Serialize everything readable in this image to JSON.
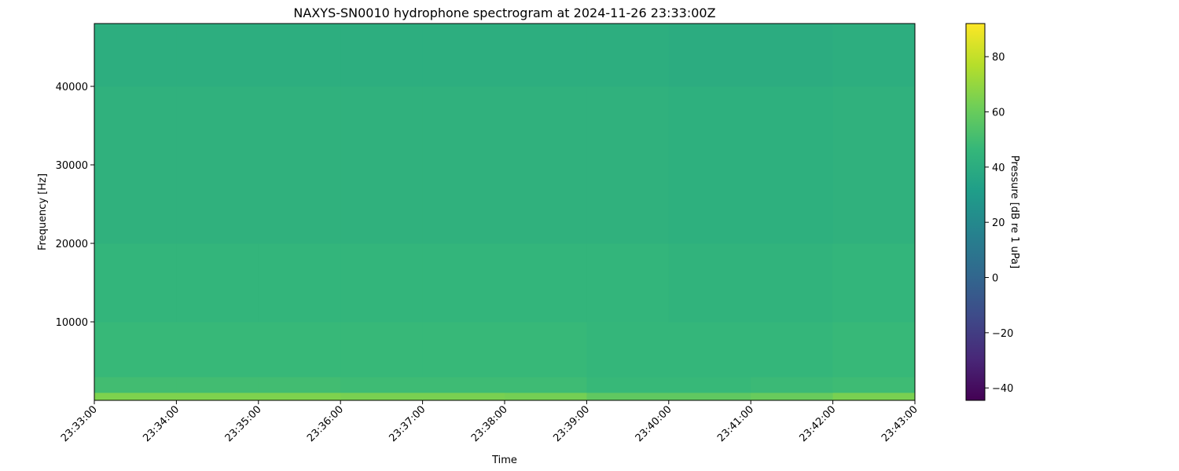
{
  "chart_data": {
    "type": "heatmap",
    "title": "NAXYS-SN0010 hydrophone spectrogram at 2024-11-26 23:33:00Z",
    "xlabel": "Time",
    "ylabel": "Frequency [Hz]",
    "colorbar_label": "Pressure [dB re 1 uPa]",
    "colormap": "viridis",
    "clim": [
      -44.5,
      92
    ],
    "ylim": [
      0,
      48000
    ],
    "x_tick_labels": [
      "23:33:00",
      "23:34:00",
      "23:35:00",
      "23:36:00",
      "23:37:00",
      "23:38:00",
      "23:39:00",
      "23:40:00",
      "23:41:00",
      "23:42:00",
      "23:43:00"
    ],
    "y_ticks": [
      10000,
      20000,
      30000,
      40000
    ],
    "colorbar_ticks": [
      -40,
      -20,
      0,
      20,
      40,
      60,
      80
    ],
    "time_bins": [
      "23:33",
      "23:34",
      "23:35",
      "23:36",
      "23:37",
      "23:38",
      "23:39",
      "23:40",
      "23:41",
      "23:42"
    ],
    "freq_band_edges_hz": [
      0,
      1000,
      3000,
      10000,
      20000,
      40000,
      48000
    ],
    "values_db": [
      [
        65,
        65,
        65,
        64,
        64,
        63,
        58,
        58,
        60,
        64
      ],
      [
        50,
        50,
        50,
        49,
        49,
        49,
        47,
        47,
        48,
        49
      ],
      [
        47,
        47,
        47,
        47,
        47,
        47,
        46,
        46,
        46,
        47
      ],
      [
        45,
        45,
        45,
        45,
        45,
        45,
        45,
        44,
        44,
        45
      ],
      [
        43,
        43,
        43,
        43,
        43,
        43,
        43,
        42,
        42,
        43
      ],
      [
        41,
        41,
        41,
        41,
        41,
        41,
        41,
        40,
        40,
        41
      ]
    ]
  }
}
